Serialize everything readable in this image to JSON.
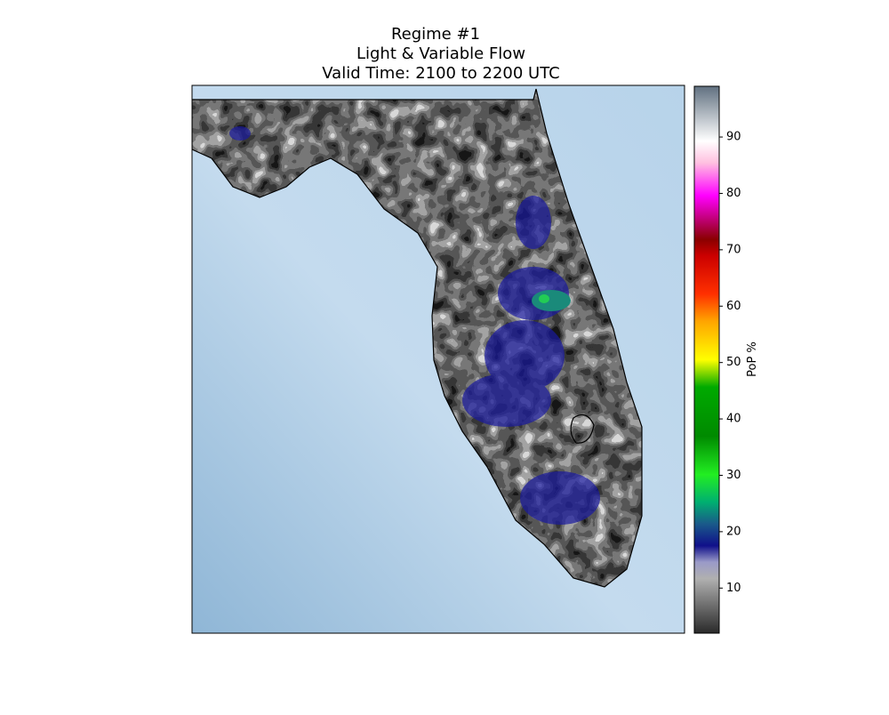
{
  "title": [
    "Regime #1",
    "Light & Variable Flow",
    "Valid Time: 2100 to 2200 UTC"
  ],
  "colorbar": {
    "label": "PoP %",
    "lim": [
      2,
      99
    ],
    "ticks": [
      10,
      20,
      30,
      40,
      50,
      60,
      70,
      80,
      90
    ]
  }
}
